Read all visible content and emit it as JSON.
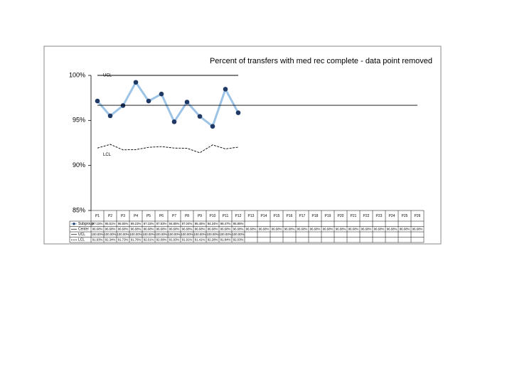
{
  "chart_data": {
    "type": "line",
    "title": "Percent of transfers with med rec complete - data point removed",
    "categories": [
      "P1",
      "P2",
      "P3",
      "P4",
      "P5",
      "P6",
      "P7",
      "P8",
      "P9",
      "P10",
      "P11",
      "P12",
      "P13",
      "P14",
      "P15",
      "P16",
      "P17",
      "P18",
      "P19",
      "P20",
      "P21",
      "P22",
      "P23",
      "P24",
      "P25",
      "P26"
    ],
    "ylim": [
      85,
      100
    ],
    "yticks": [
      {
        "value": 85,
        "label": "85%"
      },
      {
        "value": 90,
        "label": "90%"
      },
      {
        "value": 95,
        "label": "95%"
      },
      {
        "value": 100,
        "label": "100%"
      }
    ],
    "series": [
      {
        "name": "Subgroup",
        "color": "#9dc3e6",
        "marker_color": "#1f3864",
        "values": [
          97.15,
          95.51,
          96.65,
          99.23,
          97.15,
          97.93,
          94.85,
          97.04,
          95.45,
          94.34,
          98.47,
          95.85,
          null,
          null,
          null,
          null,
          null,
          null,
          null,
          null,
          null,
          null,
          null,
          null,
          null,
          null
        ],
        "value_labels": [
          "97.15%",
          "95.51%",
          "96.65%",
          "99.23%",
          "97.15%",
          "97.93%",
          "94.85%",
          "97.04%",
          "95.45%",
          "94.34%",
          "98.47%",
          "95.85%",
          null,
          null,
          null,
          null,
          null,
          null,
          null,
          null,
          null,
          null,
          null,
          null,
          null,
          null
        ]
      },
      {
        "name": "Center",
        "color": "#000000",
        "dash": false,
        "values": [
          96.68,
          96.68,
          96.68,
          96.68,
          96.68,
          96.68,
          96.68,
          96.68,
          96.68,
          96.68,
          96.68,
          96.68,
          96.68,
          96.68,
          96.68,
          96.68,
          96.68,
          96.68,
          96.68,
          96.68,
          96.68,
          96.68,
          96.68,
          96.68,
          96.68,
          96.68
        ],
        "value_labels": [
          "96.68%",
          "96.68%",
          "96.68%",
          "96.68%",
          "96.68%",
          "96.68%",
          "96.68%",
          "96.68%",
          "96.68%",
          "96.68%",
          "96.68%",
          "96.68%",
          "96.68%",
          "96.68%",
          "96.68%",
          "96.68%",
          "96.68%",
          "96.68%",
          "96.68%",
          "96.68%",
          "96.68%",
          "96.68%",
          "96.68%",
          "96.68%",
          "96.68%",
          "96.68%"
        ]
      },
      {
        "name": "UCL",
        "color": "#000000",
        "dash": false,
        "values": [
          100,
          100,
          100,
          100,
          100,
          100,
          100,
          100,
          100,
          100,
          100,
          100,
          null,
          null,
          null,
          null,
          null,
          null,
          null,
          null,
          null,
          null,
          null,
          null,
          null,
          null
        ],
        "value_labels": [
          "100.00%",
          "100.00%",
          "100.00%",
          "100.00%",
          "100.00%",
          "100.00%",
          "100.00%",
          "100.00%",
          "100.00%",
          "100.00%",
          "100.00%",
          "100.00%",
          null,
          null,
          null,
          null,
          null,
          null,
          null,
          null,
          null,
          null,
          null,
          null,
          null,
          null
        ]
      },
      {
        "name": "LCL",
        "color": "#000000",
        "dash": true,
        "values": [
          91.93,
          92.34,
          91.73,
          91.76,
          92.01,
          92.09,
          91.93,
          91.91,
          91.41,
          92.28,
          91.84,
          92.03,
          null,
          null,
          null,
          null,
          null,
          null,
          null,
          null,
          null,
          null,
          null,
          null,
          null,
          null
        ],
        "value_labels": [
          "91.93%",
          "92.34%",
          "91.73%",
          "91.76%",
          "92.01%",
          "92.09%",
          "91.93%",
          "91.91%",
          "91.41%",
          "92.28%",
          "91.84%",
          "92.03%",
          null,
          null,
          null,
          null,
          null,
          null,
          null,
          null,
          null,
          null,
          null,
          null,
          null,
          null
        ]
      }
    ]
  }
}
